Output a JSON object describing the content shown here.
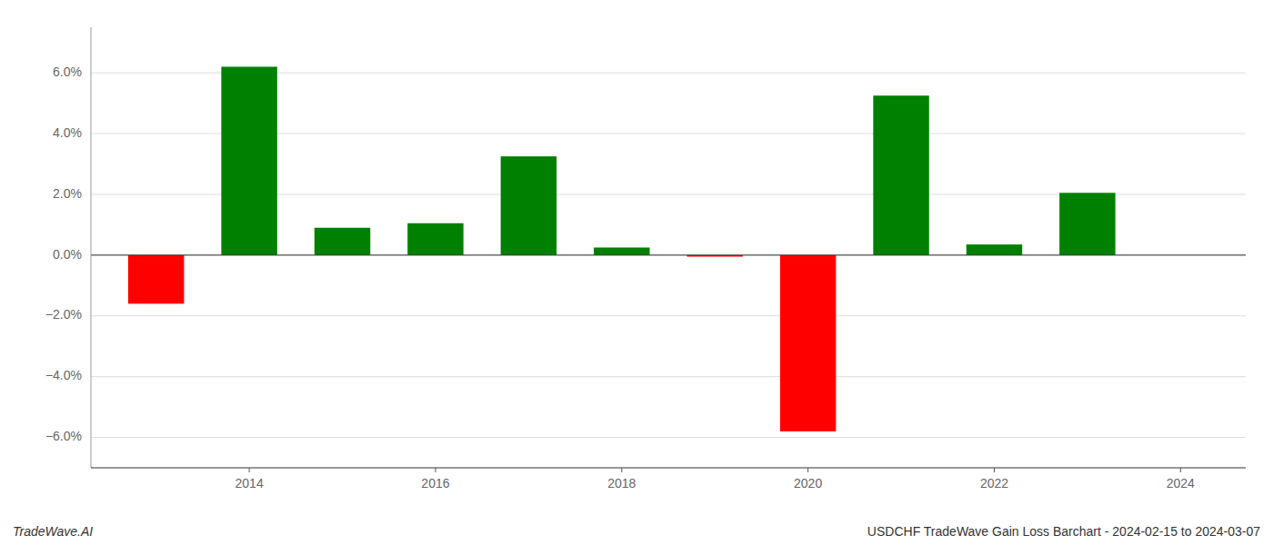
{
  "chart_data": {
    "type": "bar",
    "title": "USDCHF TradeWave Gain Loss Barchart - 2024-02-15 to 2024-03-07",
    "annotations": [
      {
        "text": "TradeWave.AI"
      }
    ],
    "x": [
      2013,
      2014,
      2015,
      2016,
      2017,
      2018,
      2019,
      2020,
      2021,
      2022,
      2023
    ],
    "values": [
      -1.6,
      6.2,
      0.9,
      1.05,
      3.25,
      0.25,
      -0.05,
      -5.8,
      5.25,
      0.35,
      2.05
    ],
    "colors": [
      "#ff0000",
      "#008000",
      "#008000",
      "#008000",
      "#008000",
      "#008000",
      "#ff0000",
      "#ff0000",
      "#008000",
      "#008000",
      "#008000"
    ],
    "xlim": [
      2012.3,
      2024.7
    ],
    "xticks": [
      2014,
      2016,
      2018,
      2020,
      2022,
      2024
    ],
    "ylim": [
      -7.0,
      7.5
    ],
    "yticks": [
      {
        "value": -6.0,
        "label": "−6.0%"
      },
      {
        "value": -4.0,
        "label": "−4.0%"
      },
      {
        "value": -2.0,
        "label": "−2.0%"
      },
      {
        "value": 0.0,
        "label": "0.0%"
      },
      {
        "value": 2.0,
        "label": "2.0%"
      },
      {
        "value": 4.0,
        "label": "4.0%"
      },
      {
        "value": 6.0,
        "label": "6.0%"
      }
    ],
    "grid": true
  }
}
